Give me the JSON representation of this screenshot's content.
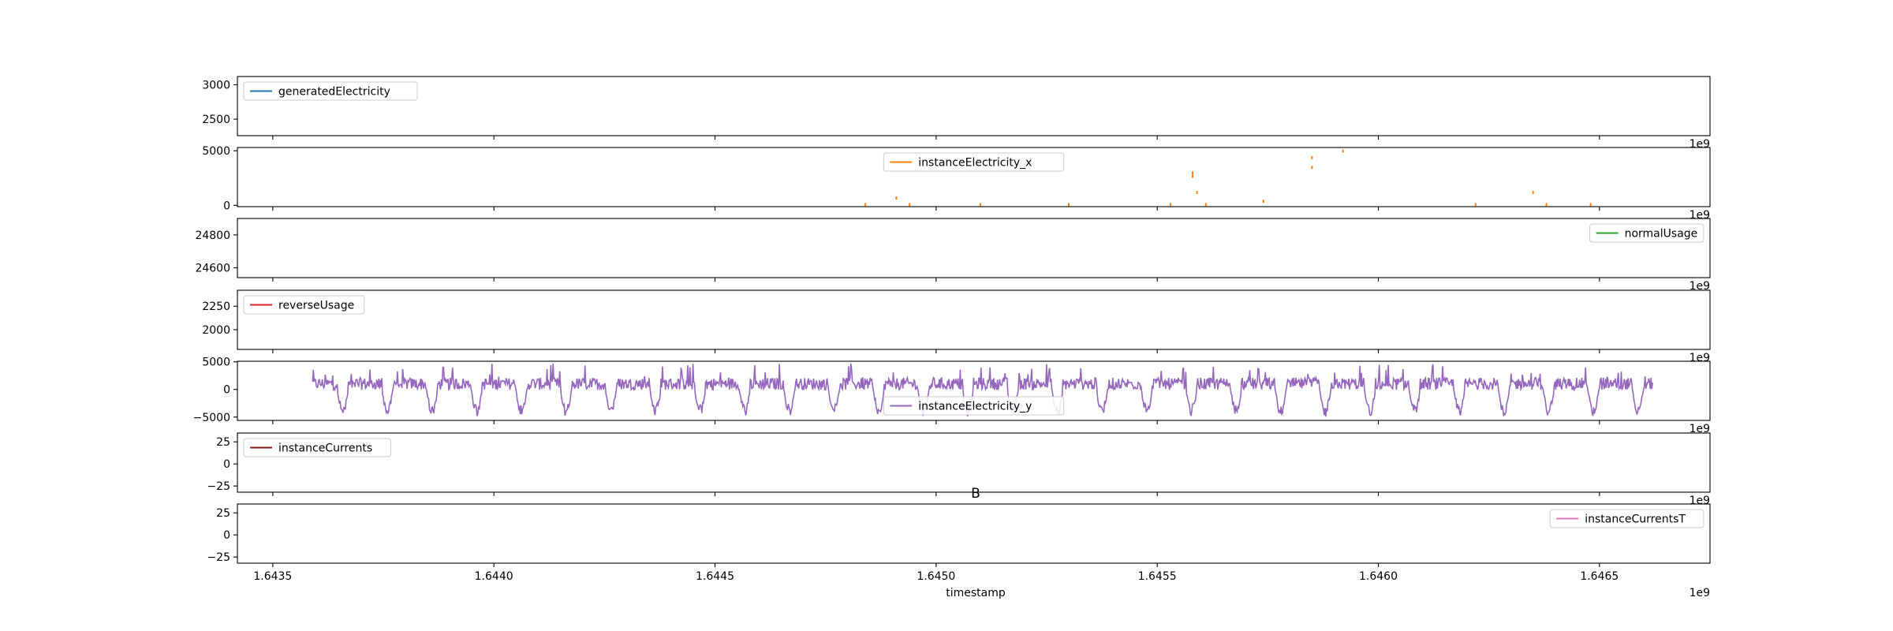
{
  "chart_data": {
    "type": "line",
    "figure_title": "B",
    "xlabel": "timestamp",
    "x_offset_label": "1e9",
    "xlim": [
      1.64342,
      1.64675
    ],
    "x_ticks": [
      1.6435,
      1.644,
      1.6445,
      1.645,
      1.6455,
      1.646,
      1.6465
    ],
    "x_tick_labels": [
      "1.6435",
      "1.6440",
      "1.6445",
      "1.6450",
      "1.6455",
      "1.6460",
      "1.6465"
    ],
    "panels": [
      {
        "series_name": "generatedElectricity",
        "color": "#1f77b4",
        "legend_position": "upper-left",
        "ylim": [
          2260,
          3120
        ],
        "y_ticks": [
          2500,
          3000
        ],
        "y_tick_labels": [
          "2500",
          "3000"
        ],
        "points": []
      },
      {
        "series_name": "instanceElectricity_x",
        "color": "#ff7f0e",
        "legend_position": "upper-center",
        "ylim": [
          -120,
          5300
        ],
        "y_ticks": [
          0,
          5000
        ],
        "y_tick_labels": [
          "0",
          "5000"
        ],
        "points": [
          [
            1.64484,
            0
          ],
          [
            1.64491,
            600
          ],
          [
            1.64494,
            0
          ],
          [
            1.6451,
            0
          ],
          [
            1.6453,
            0
          ],
          [
            1.64553,
            0
          ],
          [
            1.64558,
            2600
          ],
          [
            1.64558,
            2900
          ],
          [
            1.64559,
            1100
          ],
          [
            1.64561,
            0
          ],
          [
            1.64574,
            300
          ],
          [
            1.64585,
            4300
          ],
          [
            1.64585,
            3400
          ],
          [
            1.64592,
            4900
          ],
          [
            1.64622,
            0
          ],
          [
            1.64635,
            1100
          ],
          [
            1.64638,
            0
          ],
          [
            1.64648,
            0
          ]
        ]
      },
      {
        "series_name": "normalUsage",
        "color": "#2ca02c",
        "legend_position": "upper-right",
        "ylim": [
          24540,
          24900
        ],
        "y_ticks": [
          24600,
          24800
        ],
        "y_tick_labels": [
          "24600",
          "24800"
        ],
        "points": []
      },
      {
        "series_name": "reverseUsage",
        "color": "#d62728",
        "legend_position": "upper-left",
        "ylim": [
          1790,
          2420
        ],
        "y_ticks": [
          2000,
          2250
        ],
        "y_tick_labels": [
          "2000",
          "2250"
        ],
        "points": []
      },
      {
        "series_name": "instanceElectricity_y",
        "color": "#9467bd",
        "legend_position": "lower-center",
        "ylim": [
          -5600,
          5100
        ],
        "y_ticks": [
          -5000,
          0,
          5000
        ],
        "y_tick_labels": [
          "−5000",
          "0",
          "5000"
        ],
        "x_range": [
          1.64359,
          1.64662
        ],
        "daily_cycles": 30,
        "baseline": 800,
        "dip_min": -5000,
        "noise_high": 4800
      },
      {
        "series_name": "instanceCurrents",
        "color": "#8c1a1a",
        "legend_position": "upper-left",
        "ylim": [
          -32,
          35
        ],
        "y_ticks": [
          -25,
          0,
          25
        ],
        "y_tick_labels": [
          "−25",
          "0",
          "25"
        ],
        "points": []
      },
      {
        "series_name": "instanceCurrentsT",
        "color": "#e377c2",
        "legend_position": "upper-right",
        "ylim": [
          -32,
          35
        ],
        "y_ticks": [
          -25,
          0,
          25
        ],
        "y_tick_labels": [
          "−25",
          "0",
          "25"
        ],
        "points": []
      }
    ]
  }
}
